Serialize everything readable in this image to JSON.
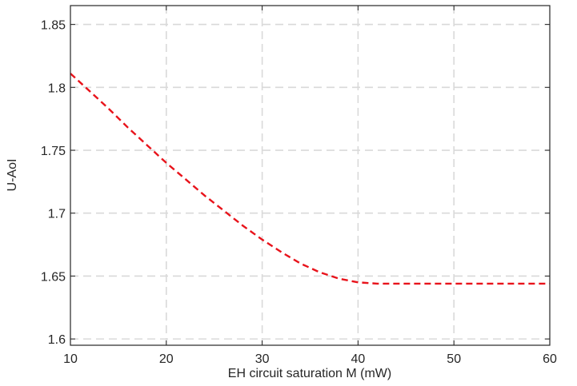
{
  "chart_data": {
    "type": "line",
    "title": "",
    "xlabel": "EH circuit saturation M (mW)",
    "ylabel": "U-AoI",
    "xlim": [
      10,
      60
    ],
    "ylim": [
      1.595,
      1.865
    ],
    "xticks": [
      10,
      20,
      30,
      40,
      50,
      60
    ],
    "yticks": [
      1.6,
      1.65,
      1.7,
      1.75,
      1.8,
      1.85
    ],
    "xtick_labels": [
      "10",
      "20",
      "30",
      "40",
      "50",
      "60"
    ],
    "ytick_labels": [
      "1.6",
      "1.65",
      "1.7",
      "1.75",
      "1.8",
      "1.85"
    ],
    "grid": true,
    "series": [
      {
        "line_style": "dashed",
        "color": "#e8131b",
        "x": [
          10,
          12,
          14,
          16,
          18,
          20,
          22,
          24,
          26,
          28,
          30,
          32,
          34,
          36,
          38,
          40,
          42,
          44,
          46,
          48,
          50,
          52,
          54,
          56,
          58,
          60
        ],
        "y": [
          1.811,
          1.797,
          1.783,
          1.768,
          1.754,
          1.74,
          1.727,
          1.714,
          1.702,
          1.69,
          1.679,
          1.669,
          1.66,
          1.653,
          1.648,
          1.645,
          1.644,
          1.644,
          1.644,
          1.644,
          1.644,
          1.644,
          1.644,
          1.644,
          1.644,
          1.644
        ]
      }
    ]
  }
}
